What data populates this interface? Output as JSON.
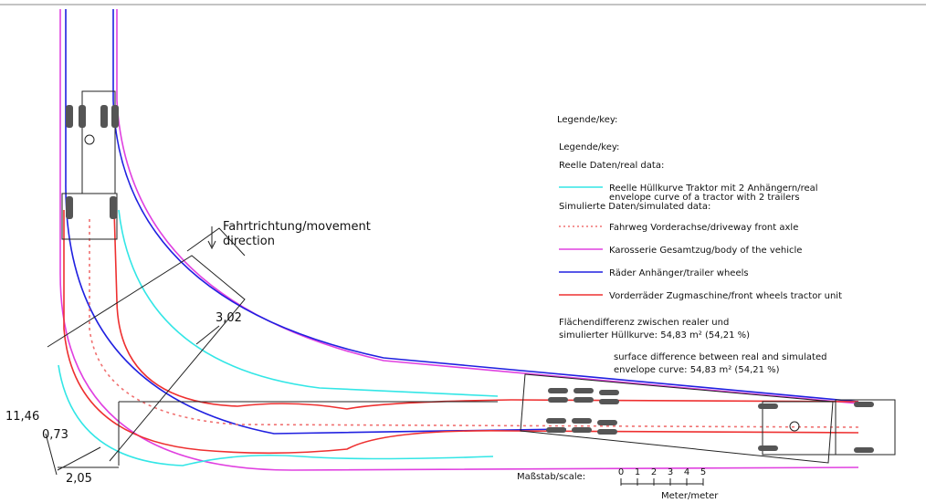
{
  "legend_title": "Legende/key:",
  "legend": {
    "title": "Legende/key:",
    "real_heading": "Reelle Daten/real data:",
    "real_items": [
      {
        "lines": [
          "Reelle Hüllkurve Traktor mit 2 Anhängern/real",
          "envelope curve of a tractor with 2 trailers"
        ],
        "color": "#33e6e6",
        "dashed": false
      }
    ],
    "sim_heading": "Simulierte Daten/simulated data:",
    "sim_items": [
      {
        "lines": [
          "Fahrweg Vorderachse/driveway front axle"
        ],
        "color": "#f07070",
        "dashed": true
      },
      {
        "lines": [
          "Karosserie Gesamtzug/body of the vehicle"
        ],
        "color": "#e040e0",
        "dashed": false
      },
      {
        "lines": [
          "Räder Anhänger/trailer wheels"
        ],
        "color": "#2020e0",
        "dashed": false
      },
      {
        "lines": [
          "Vorderräder Zugmaschine/front wheels tractor unit"
        ],
        "color": "#ee3030",
        "dashed": false
      }
    ]
  },
  "difference_de": [
    "Flächendifferenz zwischen realer und",
    "simulierter Hüllkurve:  54,83 m² (54,21 %)"
  ],
  "difference_en": [
    "surface difference between real and simulated",
    "envelope curve:  54,83 m² (54,21 %)"
  ],
  "direction": [
    "Fahrtrichtung/movement",
    "direction"
  ],
  "dimensions": {
    "width": "3,02",
    "length": "11,46",
    "offset": "0,73",
    "base": "2,05"
  },
  "scale": {
    "label": "Maßstab/scale:",
    "ticks": [
      0,
      1,
      2,
      3,
      4,
      5
    ],
    "unit": "Meter/meter"
  }
}
